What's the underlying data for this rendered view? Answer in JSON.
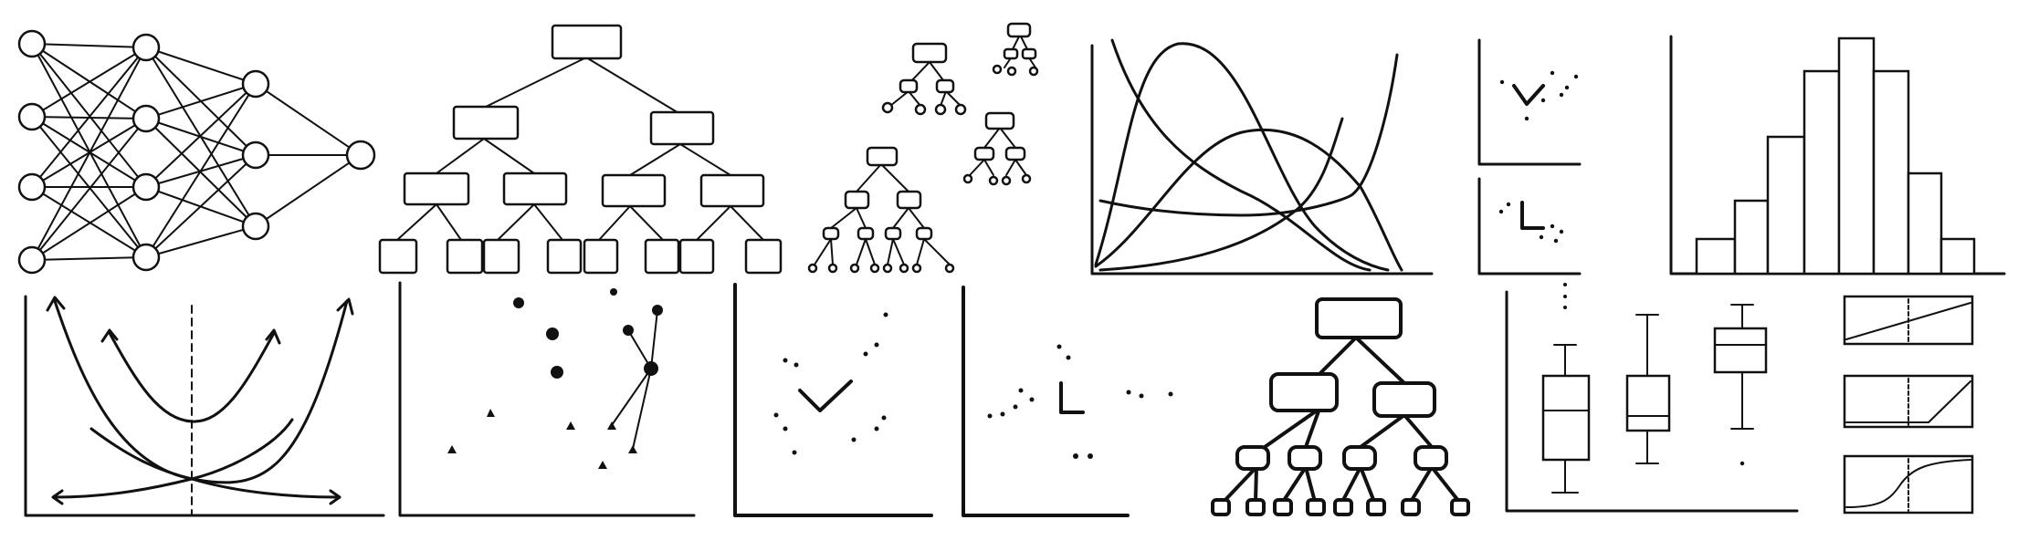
{
  "illustration": {
    "background": "#ffffff",
    "ink_color": "#111111",
    "style": "hand-drawn line sketches of machine-learning visuals",
    "panels": [
      {
        "id": "neural-network",
        "icon": "neural-network-sketch"
      },
      {
        "id": "decision-tree-large",
        "icon": "decision-tree-sketch"
      },
      {
        "id": "random-forest",
        "icon": "forest-of-trees-sketch"
      },
      {
        "id": "distribution-curves",
        "icon": "overlapping-curves-sketch"
      },
      {
        "id": "mini-scatter-pair",
        "icon": "scatter-sketch"
      },
      {
        "id": "histogram",
        "icon": "histogram-sketch"
      },
      {
        "id": "parabolas",
        "icon": "parabola-sketch"
      },
      {
        "id": "knn-scatter",
        "icon": "knn-sketch"
      },
      {
        "id": "svm-scatter",
        "icon": "scatter-sketch"
      },
      {
        "id": "cluster-scatter",
        "icon": "scatter-sketch"
      },
      {
        "id": "decision-tree-bold",
        "icon": "decision-tree-sketch"
      },
      {
        "id": "boxplots",
        "icon": "boxplot-sketch"
      },
      {
        "id": "activation-functions",
        "icon": "activation-curve-sketch"
      }
    ]
  }
}
